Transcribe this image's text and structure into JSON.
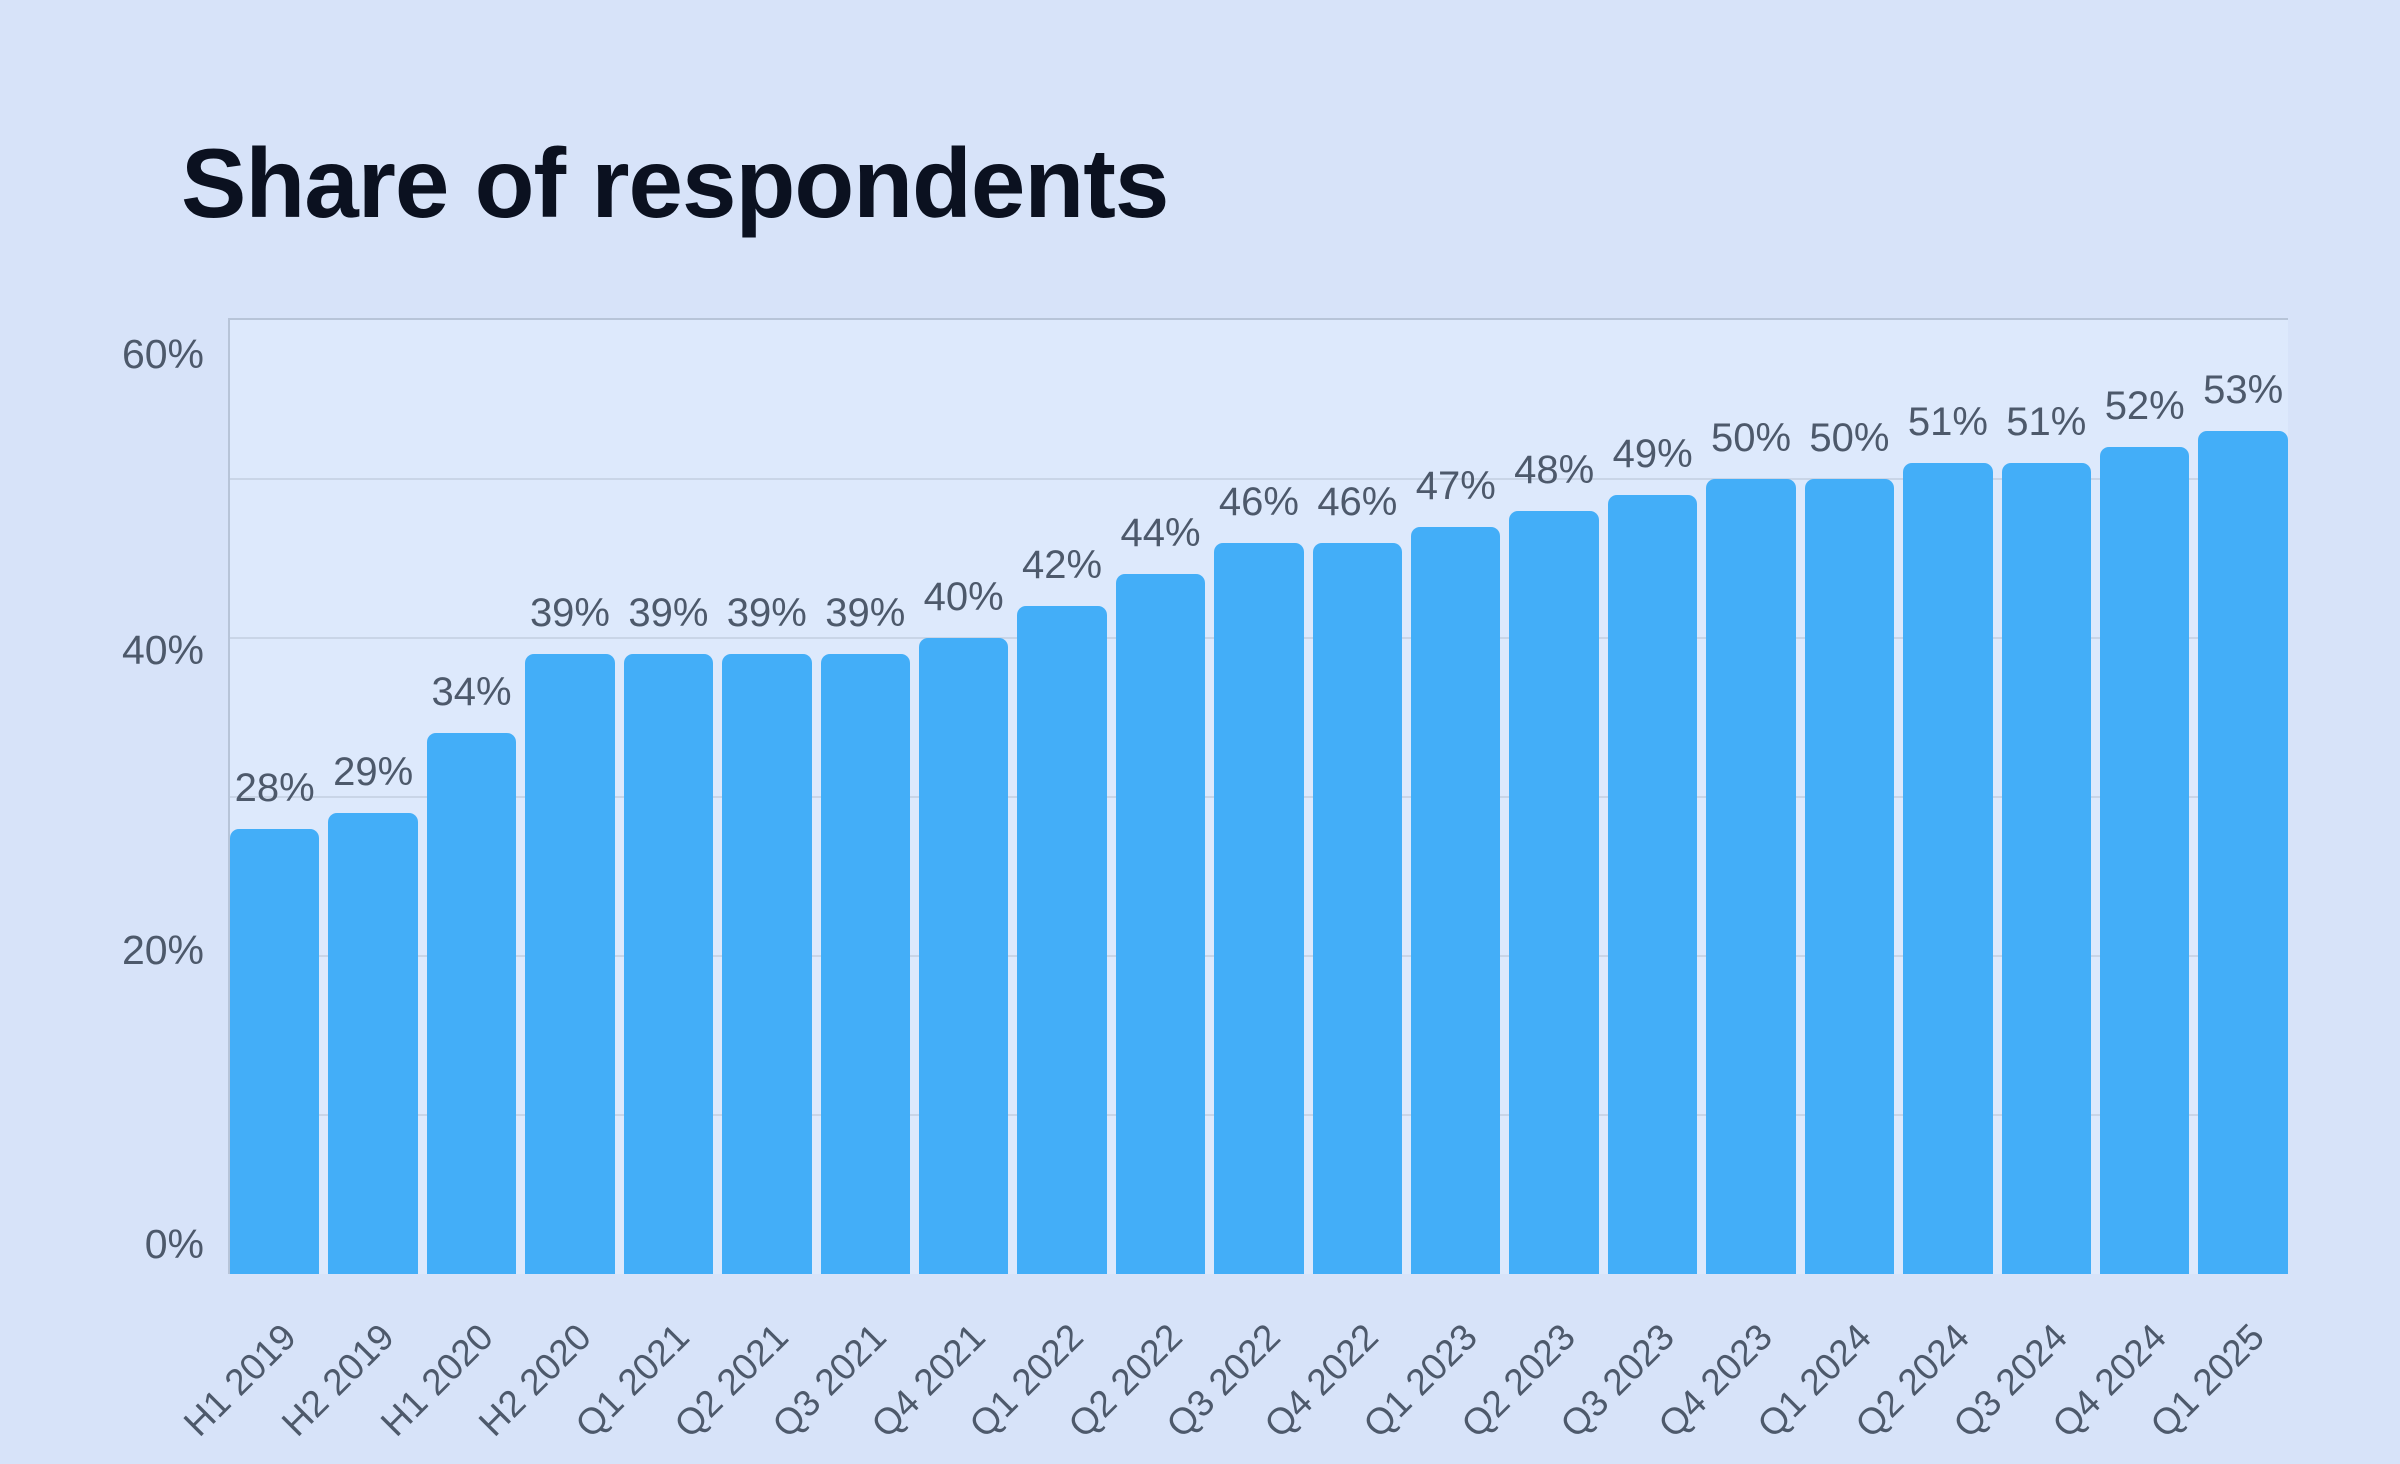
{
  "page": {
    "title": "Share of respondents"
  },
  "chart_data": {
    "type": "bar",
    "title": "Share of respondents",
    "categories": [
      "H1 2019",
      "H2 2019",
      "H1 2020",
      "H2 2020",
      "Q1 2021",
      "Q2 2021",
      "Q3 2021",
      "Q4 2021",
      "Q1 2022",
      "Q2 2022",
      "Q3 2022",
      "Q4 2022",
      "Q1 2023",
      "Q2 2023",
      "Q3 2023",
      "Q4 2023",
      "Q1 2024",
      "Q2 2024",
      "Q3 2024",
      "Q4 2024",
      "Q1 2025"
    ],
    "values": [
      28,
      29,
      34,
      39,
      39,
      39,
      39,
      40,
      42,
      44,
      46,
      46,
      47,
      48,
      49,
      50,
      50,
      51,
      51,
      52,
      53
    ],
    "value_label_format": "{v}%",
    "xlabel": "",
    "ylabel": "",
    "ylim": [
      0,
      60
    ],
    "y_ticks": [
      {
        "label": "0%",
        "value": 0
      },
      {
        "label": "20%",
        "value": 20
      },
      {
        "label": "40%",
        "value": 40
      },
      {
        "label": "60%",
        "value": 60
      }
    ],
    "gridline_values": [
      10,
      20,
      30,
      40,
      50,
      60
    ],
    "grid": "horizontal",
    "legend": "none",
    "colors": {
      "bar": "#43aef8",
      "page_background": "#d7e3f9",
      "plot_background": "#dde9fc",
      "grid_line": "#c9d5e7",
      "axis_spine": "#b7c4d8",
      "tick_text": "#4d596b",
      "value_label_text": "#4d596b",
      "title_text": "#0b1120"
    }
  }
}
